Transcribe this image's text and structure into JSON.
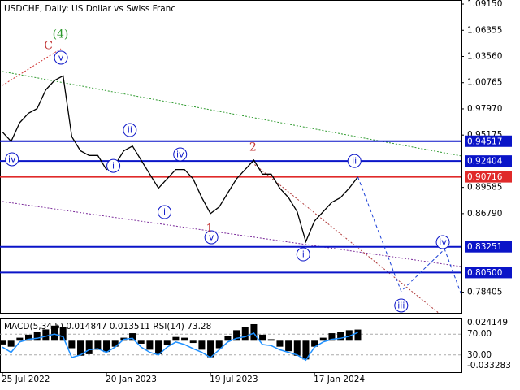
{
  "chart_data": [
    {
      "type": "line",
      "title": "USDCHF, Daily:  US Dollar vs Swiss Franc",
      "categories": [
        "25 Jul 2022",
        null,
        null,
        null,
        null,
        null,
        null,
        null,
        null,
        null,
        null,
        null,
        "20 Jan 2023",
        null,
        null,
        null,
        null,
        null,
        null,
        null,
        null,
        null,
        null,
        null,
        "19 Jul 2023",
        null,
        null,
        null,
        null,
        null,
        null,
        null,
        null,
        null,
        null,
        null,
        "17 Jan 2024",
        null,
        null,
        null,
        null,
        null,
        null,
        null,
        null,
        null,
        null,
        null,
        null,
        null,
        null,
        null,
        null,
        null
      ],
      "series": [
        {
          "name": "USDCHF",
          "color": "#000000",
          "dash": false,
          "values": [
            0.955,
            0.945,
            0.965,
            0.975,
            0.98,
            1.0,
            1.01,
            1.015,
            0.95,
            0.935,
            0.93,
            0.93,
            0.915,
            0.92,
            0.935,
            0.94,
            0.925,
            0.91,
            0.895,
            0.905,
            0.915,
            0.915,
            0.905,
            0.885,
            0.868,
            0.875,
            0.89,
            0.905,
            0.915,
            0.925,
            0.91,
            0.91,
            0.895,
            0.885,
            0.87,
            0.838,
            0.86,
            0.87,
            0.88,
            0.885,
            0.895,
            0.907,
            null,
            null,
            null,
            null,
            null,
            null,
            null,
            null,
            null,
            null,
            null,
            null
          ]
        },
        {
          "name": "Forecast",
          "color": "#1a3fd6",
          "dash": true,
          "values": [
            null,
            null,
            null,
            null,
            null,
            null,
            null,
            null,
            null,
            null,
            null,
            null,
            null,
            null,
            null,
            null,
            null,
            null,
            null,
            null,
            null,
            null,
            null,
            null,
            null,
            null,
            null,
            null,
            null,
            null,
            null,
            null,
            null,
            null,
            null,
            null,
            null,
            null,
            null,
            null,
            null,
            0.907,
            0.883,
            0.858,
            0.834,
            0.809,
            0.785,
            0.794,
            0.803,
            0.812,
            0.821,
            0.83,
            0.805,
            0.78
          ]
        }
      ],
      "ylim": [
        0.762,
        1.095
      ],
      "yticks": [
        {
          "value": 1.0915,
          "label": "1.09150"
        },
        1.06355,
        {
          "value": 1.0356,
          "label": "1.03560"
        },
        1.00765,
        {
          "value": 0.9797,
          "label": "0.97970"
        },
        0.95175,
        0.89585,
        {
          "value": 0.8679,
          "label": "0.86790"
        },
        0.78405
      ],
      "levels": [
        {
          "value": 0.94517,
          "color": "#0a14c8"
        },
        {
          "value": 0.92404,
          "color": "#0a14c8"
        },
        {
          "value": 0.90716,
          "color": "#e02a2a"
        },
        {
          "value": 0.83251,
          "color": "#0a14c8"
        },
        {
          "value": 0.805,
          "color": "#0a14c8",
          "label": "0.80500"
        }
      ],
      "trendlines": [
        {
          "color": "#2e9a2e",
          "from": [
            0,
            1.0196
          ],
          "to": [
            52.95,
            0.9294
          ]
        },
        {
          "color": "#d03030",
          "from": [
            0,
            1.0048
          ],
          "to": [
            6.75,
            1.0438
          ]
        },
        {
          "color": "#7a2a9a",
          "from": [
            0,
            0.8808
          ],
          "to": [
            52.95,
            0.8114
          ]
        },
        {
          "color": "#b03a3a",
          "from": [
            28.8,
            0.9224
          ],
          "to": [
            50.3,
            0.762
          ]
        }
      ],
      "annotations": [
        {
          "text": "(4)",
          "at": 6.7,
          "price": 1.0594,
          "style": "plain",
          "color": "#2e9a2e"
        },
        {
          "text": "C",
          "at": 5.3,
          "price": 1.0473,
          "style": "plain",
          "color": "#c03030"
        },
        {
          "text": "v",
          "at": 6.75,
          "price": 1.0343,
          "style": "circle",
          "color": "#0a14c8"
        },
        {
          "text": "iv",
          "at": 1.1,
          "price": 0.9259,
          "style": "circle",
          "color": "#0a14c8"
        },
        {
          "text": "i",
          "at": 12.8,
          "price": 0.9189,
          "style": "circle",
          "color": "#0a14c8"
        },
        {
          "text": "ii",
          "at": 14.7,
          "price": 0.9571,
          "style": "circle",
          "color": "#0a14c8"
        },
        {
          "text": "iii",
          "at": 18.7,
          "price": 0.8695,
          "style": "circle",
          "color": "#0a14c8"
        },
        {
          "text": "iv",
          "at": 20.5,
          "price": 0.9311,
          "style": "circle",
          "color": "#0a14c8"
        },
        {
          "text": "v",
          "at": 24.1,
          "price": 0.8426,
          "style": "circle",
          "color": "#0a14c8"
        },
        {
          "text": "1",
          "at": 23.9,
          "price": 0.8522,
          "style": "plain",
          "color": "#c03030"
        },
        {
          "text": "2",
          "at": 28.9,
          "price": 0.9389,
          "style": "plain",
          "color": "#c03030"
        },
        {
          "text": "i",
          "at": 34.7,
          "price": 0.8244,
          "style": "circle",
          "color": "#0a14c8"
        },
        {
          "text": "ii",
          "at": 40.6,
          "price": 0.9241,
          "style": "circle",
          "color": "#0a14c8"
        },
        {
          "text": "iii",
          "at": 46,
          "price": 0.7698,
          "style": "circle",
          "color": "#0a14c8"
        },
        {
          "text": "iv",
          "at": 50.8,
          "price": 0.8374,
          "style": "circle",
          "color": "#0a14c8"
        }
      ]
    },
    {
      "type": "macd",
      "title": "MACD(5,34,5) 0.014847 0.013511 RSI(14) 73.28",
      "ylim": [
        -0.033283,
        0.024149
      ],
      "yticks": [
        0.024149,
        -0.033283
      ],
      "y2lim": [
        0,
        100
      ],
      "y2ticks": [
        {
          "value": 70,
          "label": "70.00"
        },
        {
          "value": 30,
          "label": "30.00"
        }
      ],
      "series": [
        {
          "name": "MACD",
          "color": "#000000",
          "values": [
            -0.005,
            -0.008,
            0.004,
            0.008,
            0.012,
            0.015,
            0.02,
            0.018,
            -0.01,
            -0.02,
            -0.018,
            -0.012,
            -0.015,
            -0.008,
            0.004,
            0.01,
            -0.004,
            -0.012,
            -0.018,
            -0.006,
            0.005,
            0.004,
            -0.003,
            -0.012,
            -0.022,
            -0.01,
            0.006,
            0.014,
            0.018,
            0.022,
            0.008,
            0.002,
            -0.008,
            -0.014,
            -0.02,
            -0.025,
            -0.008,
            0.004,
            0.01,
            0.012,
            0.014,
            0.014847
          ]
        },
        {
          "name": "RSI",
          "color": "#1e90ff",
          "axis": "y2",
          "values": [
            45,
            35,
            55,
            60,
            62,
            66,
            70,
            65,
            25,
            30,
            40,
            42,
            35,
            45,
            60,
            62,
            45,
            35,
            30,
            45,
            55,
            50,
            42,
            35,
            25,
            40,
            55,
            62,
            65,
            72,
            50,
            48,
            40,
            35,
            30,
            20,
            45,
            55,
            60,
            62,
            66,
            73.28
          ]
        }
      ]
    }
  ]
}
